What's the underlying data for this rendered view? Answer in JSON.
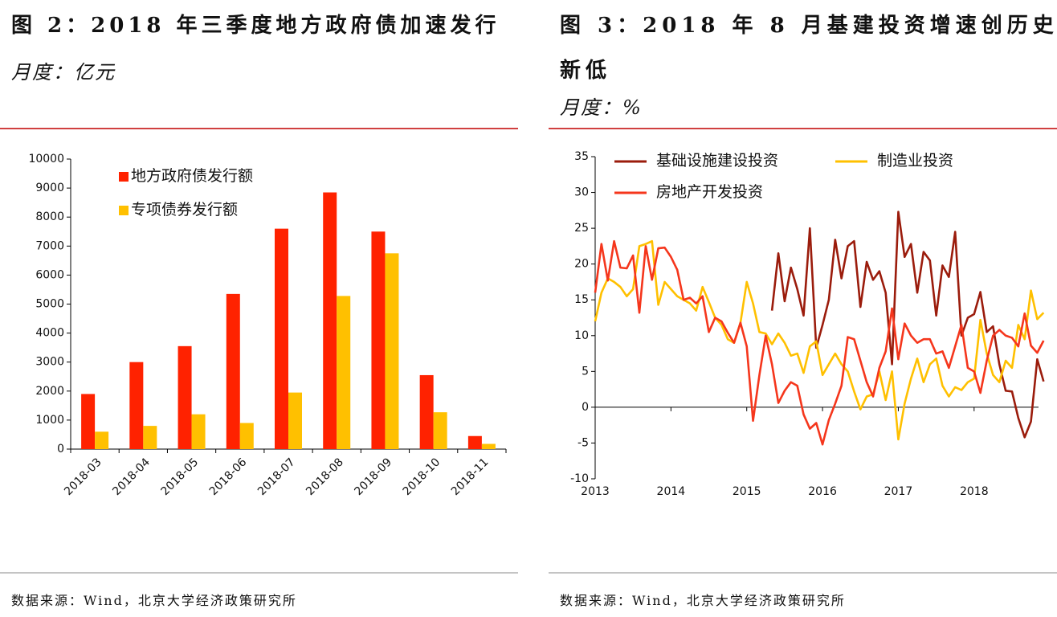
{
  "chart_data": [
    {
      "type": "bar",
      "title": "图 2：2018 年三季度地方政府债加速发行",
      "subtitle": "月度：亿元",
      "categories": [
        "2018-03",
        "2018-04",
        "2018-05",
        "2018-06",
        "2018-07",
        "2018-08",
        "2018-09",
        "2018-10",
        "2018-11"
      ],
      "series": [
        {
          "name": "地方政府债发行额",
          "color": "#ff2200",
          "values": [
            1900,
            3000,
            3550,
            5350,
            7600,
            8850,
            7500,
            2550,
            450
          ]
        },
        {
          "name": "专项债券发行额",
          "color": "#ffc000",
          "values": [
            600,
            800,
            1200,
            900,
            1950,
            5280,
            6750,
            1270,
            180
          ]
        }
      ],
      "ylim": [
        0,
        10000
      ],
      "yticks": [
        0,
        1000,
        2000,
        3000,
        4000,
        5000,
        6000,
        7000,
        8000,
        9000,
        10000
      ],
      "legend": "upper left",
      "source": "数据来源：Wind，北京大学经济政策研究所"
    },
    {
      "type": "line",
      "title": "图 3：2018 年 8 月基建投资增速创历史新低",
      "subtitle": "月度：%",
      "x": [
        2013,
        2013.083,
        2013.167,
        2013.25,
        2013.333,
        2013.417,
        2013.5,
        2013.583,
        2013.667,
        2013.75,
        2013.833,
        2013.917,
        2014,
        2014.083,
        2014.167,
        2014.25,
        2014.333,
        2014.417,
        2014.5,
        2014.583,
        2014.667,
        2014.75,
        2014.833,
        2014.917,
        2015,
        2015.083,
        2015.167,
        2015.25,
        2015.333,
        2015.417,
        2015.5,
        2015.583,
        2015.667,
        2015.75,
        2015.833,
        2015.917,
        2016,
        2016.083,
        2016.167,
        2016.25,
        2016.333,
        2016.417,
        2016.5,
        2016.583,
        2016.667,
        2016.75,
        2016.833,
        2016.917,
        2017,
        2017.083,
        2017.167,
        2017.25,
        2017.333,
        2017.417,
        2017.5,
        2017.583,
        2017.667,
        2017.75,
        2017.833,
        2017.917,
        2018,
        2018.083,
        2018.167,
        2018.25,
        2018.333,
        2018.417,
        2018.5,
        2018.583,
        2018.667,
        2018.75,
        2018.833,
        2018.917
      ],
      "xlim": [
        2013,
        2018.85
      ],
      "xticks": [
        2013,
        2014,
        2015,
        2016,
        2017,
        2018
      ],
      "series": [
        {
          "name": "基础设施建设投资",
          "color": "#9b1c0c",
          "values": [
            null,
            null,
            null,
            null,
            null,
            null,
            null,
            null,
            null,
            null,
            null,
            null,
            null,
            null,
            null,
            null,
            null,
            null,
            null,
            null,
            null,
            null,
            null,
            null,
            null,
            null,
            null,
            null,
            13.5,
            21.5,
            14.8,
            19.5,
            16.5,
            12.8,
            25,
            8.3,
            11.5,
            15,
            23.4,
            18,
            22.5,
            23.2,
            14,
            20.3,
            17.8,
            19,
            16,
            6,
            27.3,
            21,
            22.8,
            16,
            21.7,
            20.5,
            12.8,
            19.8,
            18.2,
            24.5,
            10,
            12.5,
            13,
            16.1,
            10.5,
            11.3,
            6,
            2.3,
            2.2,
            -1.5,
            -4.2,
            -2,
            6.7,
            3.6
          ]
        },
        {
          "name": "制造业投资",
          "color": "#ffc000",
          "values": [
            12,
            16,
            18,
            17.5,
            16.8,
            15.5,
            16.5,
            22.5,
            22.8,
            23.2,
            14.3,
            17.5,
            16.5,
            15.5,
            15,
            14.5,
            13.5,
            16.8,
            14.7,
            12.5,
            11.5,
            9.5,
            9,
            11.8,
            17.5,
            14.5,
            10.5,
            10.3,
            8.8,
            10.3,
            9,
            7.2,
            7.5,
            4.8,
            8.5,
            9.2,
            4.5,
            6,
            7.5,
            6,
            5,
            2.2,
            -0.3,
            1.5,
            1.8,
            5,
            1,
            5,
            -4.5,
            0.5,
            4,
            6.8,
            3.5,
            6,
            6.8,
            3,
            1.5,
            2.8,
            2.4,
            3.5,
            4,
            12.2,
            7.5,
            4.5,
            3.5,
            6.5,
            5.5,
            11.5,
            9.5,
            16.3,
            12.3,
            13.2
          ]
        },
        {
          "name": "房地产开发投资",
          "color": "#f5361c",
          "values": [
            16,
            22.8,
            17.7,
            23.2,
            19.5,
            19.4,
            21.2,
            13.2,
            22.5,
            17.8,
            22.2,
            22.3,
            21,
            19.2,
            15,
            15.3,
            14.5,
            15.5,
            10.5,
            12.5,
            12,
            10.4,
            9,
            11.8,
            8.5,
            -1.9,
            4.5,
            10,
            6,
            0.6,
            2.3,
            3.5,
            3,
            -1,
            -3,
            -2.2,
            -5.2,
            -1.8,
            0.5,
            3,
            9.8,
            9.5,
            6.5,
            3.5,
            1.5,
            5.5,
            7.8,
            13.8,
            6.7,
            11.7,
            10,
            9,
            9.5,
            9.5,
            7.5,
            7.8,
            5.5,
            8.5,
            11.5,
            5.5,
            5,
            2,
            6.5,
            10,
            10.8,
            10,
            9.7,
            8.5,
            13.1,
            8.6,
            7.6,
            9.3
          ]
        }
      ],
      "ylim": [
        -10,
        35
      ],
      "yticks": [
        -10,
        -5,
        0,
        5,
        10,
        15,
        20,
        25,
        30,
        35
      ],
      "legend": "upper left",
      "source": "数据来源：Wind，北京大学经济政策研究所"
    }
  ]
}
